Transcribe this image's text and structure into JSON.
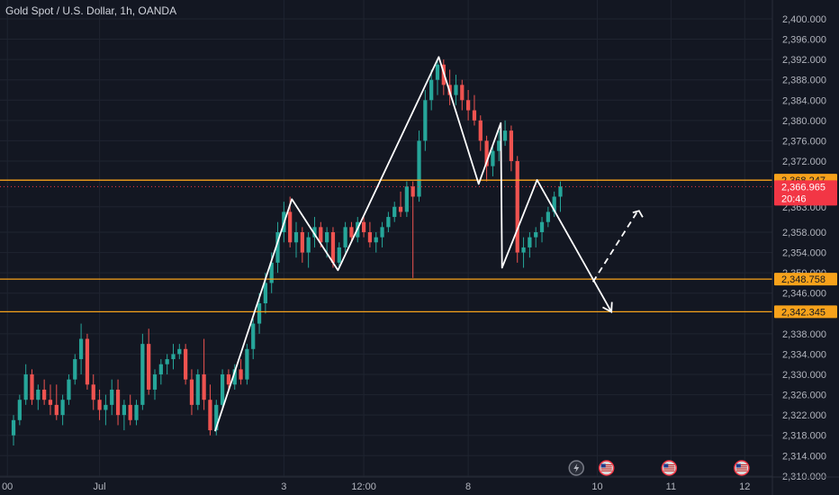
{
  "header": {
    "title": "Gold Spot / U.S. Dollar, 1h, OANDA"
  },
  "colors": {
    "background": "#131722",
    "grid": "#1f2430",
    "up": "#26a69a",
    "down": "#ef5350",
    "level": "#f7a21b",
    "pattern": "#ffffff",
    "last_price_bg": "#f23645",
    "axis_text": "#b2b5be"
  },
  "chart_data": {
    "type": "candlestick",
    "instrument": "Gold Spot / U.S. Dollar",
    "timeframe": "1h",
    "source": "OANDA",
    "y_axis": {
      "ticks": [
        "2,400.000",
        "2,396.000",
        "2,392.000",
        "2,388.000",
        "2,384.000",
        "2,380.000",
        "2,376.000",
        "2,372.000",
        "2,363.000",
        "2,358.000",
        "2,354.000",
        "2,350.000",
        "2,346.000",
        "2,338.000",
        "2,334.000",
        "2,330.000",
        "2,326.000",
        "2,322.000",
        "2,318.000",
        "2,314.000",
        "2,310.000"
      ],
      "tick_values": [
        2400,
        2396,
        2392,
        2388,
        2384,
        2380,
        2376,
        2372,
        2363,
        2358,
        2354,
        2350,
        2346,
        2338,
        2334,
        2330,
        2326,
        2322,
        2318,
        2314,
        2310
      ],
      "range": [
        2309.8,
        2402.3
      ]
    },
    "x_axis": {
      "ticks": [
        "00",
        "Jul",
        "3",
        "12:00",
        "8",
        "10",
        "11",
        "12"
      ],
      "tick_positions": [
        -1,
        14,
        44,
        57,
        74,
        95,
        107,
        119
      ]
    },
    "x_range": [
      -2.2,
      123.5
    ],
    "price_levels": [
      {
        "value": 2368.247,
        "label": "2,368.247"
      },
      {
        "value": 2348.758,
        "label": "2,348.758"
      },
      {
        "value": 2342.345,
        "label": "2,342.345"
      }
    ],
    "last_price": {
      "value": 2366.965,
      "label": "2,366.965",
      "countdown": "20:46"
    },
    "pattern_line": [
      {
        "x": 32.8,
        "y": 2318.8
      },
      {
        "x": 45.3,
        "y": 2364.5
      },
      {
        "x": 52.8,
        "y": 2350.5
      },
      {
        "x": 69.2,
        "y": 2392.5
      },
      {
        "x": 75.7,
        "y": 2367.5
      },
      {
        "x": 79.3,
        "y": 2379.5
      },
      {
        "x": 79.5,
        "y": 2351.0
      },
      {
        "x": 85.2,
        "y": 2368.3
      },
      {
        "x": 97.3,
        "y": 2342.3
      }
    ],
    "pattern_arrow_tip": {
      "x": 97.3,
      "y": 2342.3
    },
    "projection_dashed": [
      {
        "x": 94.3,
        "y": 2348.2
      },
      {
        "x": 101.5,
        "y": 2362.0
      }
    ],
    "projection_tip": {
      "x": 101.8,
      "y": 2362.2
    },
    "candles": [
      {
        "o": 2318,
        "h": 2322,
        "l": 2316,
        "c": 2321
      },
      {
        "o": 2321,
        "h": 2326,
        "l": 2320,
        "c": 2325
      },
      {
        "o": 2325,
        "h": 2332,
        "l": 2324,
        "c": 2330
      },
      {
        "o": 2330,
        "h": 2331,
        "l": 2324,
        "c": 2325
      },
      {
        "o": 2325,
        "h": 2328,
        "l": 2323,
        "c": 2327
      },
      {
        "o": 2327,
        "h": 2329,
        "l": 2324,
        "c": 2325
      },
      {
        "o": 2325,
        "h": 2328,
        "l": 2322,
        "c": 2324
      },
      {
        "o": 2324,
        "h": 2328,
        "l": 2321,
        "c": 2322
      },
      {
        "o": 2322,
        "h": 2326,
        "l": 2320,
        "c": 2325
      },
      {
        "o": 2325,
        "h": 2330,
        "l": 2324,
        "c": 2329
      },
      {
        "o": 2329,
        "h": 2334,
        "l": 2328,
        "c": 2333
      },
      {
        "o": 2333,
        "h": 2340,
        "l": 2330,
        "c": 2337
      },
      {
        "o": 2337,
        "h": 2338,
        "l": 2327,
        "c": 2328
      },
      {
        "o": 2328,
        "h": 2330,
        "l": 2323,
        "c": 2325
      },
      {
        "o": 2325,
        "h": 2327,
        "l": 2321,
        "c": 2323
      },
      {
        "o": 2323,
        "h": 2326,
        "l": 2320,
        "c": 2324
      },
      {
        "o": 2324,
        "h": 2329,
        "l": 2322,
        "c": 2327
      },
      {
        "o": 2327,
        "h": 2329,
        "l": 2320,
        "c": 2322
      },
      {
        "o": 2322,
        "h": 2325,
        "l": 2319,
        "c": 2324
      },
      {
        "o": 2324,
        "h": 2326,
        "l": 2320,
        "c": 2321
      },
      {
        "o": 2321,
        "h": 2325,
        "l": 2320,
        "c": 2324
      },
      {
        "o": 2324,
        "h": 2338,
        "l": 2323,
        "c": 2336
      },
      {
        "o": 2336,
        "h": 2339,
        "l": 2326,
        "c": 2327
      },
      {
        "o": 2327,
        "h": 2331,
        "l": 2325,
        "c": 2330
      },
      {
        "o": 2330,
        "h": 2333,
        "l": 2328,
        "c": 2332
      },
      {
        "o": 2332,
        "h": 2334,
        "l": 2330,
        "c": 2333
      },
      {
        "o": 2333,
        "h": 2336,
        "l": 2331,
        "c": 2334
      },
      {
        "o": 2334,
        "h": 2336,
        "l": 2333,
        "c": 2335
      },
      {
        "o": 2335,
        "h": 2336,
        "l": 2328,
        "c": 2329
      },
      {
        "o": 2329,
        "h": 2331,
        "l": 2322,
        "c": 2324
      },
      {
        "o": 2324,
        "h": 2331,
        "l": 2323,
        "c": 2330
      },
      {
        "o": 2330,
        "h": 2337,
        "l": 2323,
        "c": 2325
      },
      {
        "o": 2325,
        "h": 2328,
        "l": 2318,
        "c": 2319
      },
      {
        "o": 2319,
        "h": 2325,
        "l": 2318,
        "c": 2324
      },
      {
        "o": 2324,
        "h": 2331,
        "l": 2323,
        "c": 2330
      },
      {
        "o": 2330,
        "h": 2331,
        "l": 2327,
        "c": 2328
      },
      {
        "o": 2328,
        "h": 2332,
        "l": 2327,
        "c": 2331
      },
      {
        "o": 2331,
        "h": 2333,
        "l": 2328,
        "c": 2329
      },
      {
        "o": 2329,
        "h": 2336,
        "l": 2328,
        "c": 2335
      },
      {
        "o": 2335,
        "h": 2341,
        "l": 2333,
        "c": 2340
      },
      {
        "o": 2340,
        "h": 2346,
        "l": 2338,
        "c": 2344
      },
      {
        "o": 2344,
        "h": 2350,
        "l": 2342,
        "c": 2348
      },
      {
        "o": 2348,
        "h": 2354,
        "l": 2346,
        "c": 2352
      },
      {
        "o": 2352,
        "h": 2360,
        "l": 2350,
        "c": 2358
      },
      {
        "o": 2358,
        "h": 2364,
        "l": 2356,
        "c": 2362
      },
      {
        "o": 2362,
        "h": 2365,
        "l": 2355,
        "c": 2356
      },
      {
        "o": 2356,
        "h": 2360,
        "l": 2353,
        "c": 2358
      },
      {
        "o": 2358,
        "h": 2359,
        "l": 2352,
        "c": 2354
      },
      {
        "o": 2354,
        "h": 2358,
        "l": 2351,
        "c": 2357
      },
      {
        "o": 2357,
        "h": 2361,
        "l": 2355,
        "c": 2359
      },
      {
        "o": 2359,
        "h": 2360,
        "l": 2355,
        "c": 2356
      },
      {
        "o": 2356,
        "h": 2359,
        "l": 2353,
        "c": 2358
      },
      {
        "o": 2358,
        "h": 2359,
        "l": 2351,
        "c": 2352
      },
      {
        "o": 2352,
        "h": 2356,
        "l": 2351,
        "c": 2355
      },
      {
        "o": 2355,
        "h": 2360,
        "l": 2354,
        "c": 2359
      },
      {
        "o": 2359,
        "h": 2360,
        "l": 2356,
        "c": 2357
      },
      {
        "o": 2357,
        "h": 2361,
        "l": 2356,
        "c": 2360
      },
      {
        "o": 2360,
        "h": 2361,
        "l": 2357,
        "c": 2358
      },
      {
        "o": 2358,
        "h": 2360,
        "l": 2355,
        "c": 2356
      },
      {
        "o": 2356,
        "h": 2358,
        "l": 2354,
        "c": 2357
      },
      {
        "o": 2357,
        "h": 2360,
        "l": 2355,
        "c": 2359
      },
      {
        "o": 2359,
        "h": 2362,
        "l": 2358,
        "c": 2361
      },
      {
        "o": 2361,
        "h": 2364,
        "l": 2360,
        "c": 2363
      },
      {
        "o": 2363,
        "h": 2366,
        "l": 2361,
        "c": 2362
      },
      {
        "o": 2362,
        "h": 2368,
        "l": 2361,
        "c": 2367
      },
      {
        "o": 2367,
        "h": 2368,
        "l": 2349,
        "c": 2365
      },
      {
        "o": 2365,
        "h": 2378,
        "l": 2364,
        "c": 2376
      },
      {
        "o": 2376,
        "h": 2386,
        "l": 2374,
        "c": 2384
      },
      {
        "o": 2384,
        "h": 2390,
        "l": 2382,
        "c": 2388
      },
      {
        "o": 2388,
        "h": 2392,
        "l": 2385,
        "c": 2391
      },
      {
        "o": 2391,
        "h": 2392,
        "l": 2385,
        "c": 2387
      },
      {
        "o": 2387,
        "h": 2390,
        "l": 2383,
        "c": 2385
      },
      {
        "o": 2385,
        "h": 2389,
        "l": 2383,
        "c": 2387
      },
      {
        "o": 2387,
        "h": 2388,
        "l": 2382,
        "c": 2384
      },
      {
        "o": 2384,
        "h": 2386,
        "l": 2380,
        "c": 2382
      },
      {
        "o": 2382,
        "h": 2385,
        "l": 2379,
        "c": 2380
      },
      {
        "o": 2380,
        "h": 2381,
        "l": 2374,
        "c": 2376
      },
      {
        "o": 2376,
        "h": 2377,
        "l": 2368,
        "c": 2371
      },
      {
        "o": 2371,
        "h": 2375,
        "l": 2369,
        "c": 2374
      },
      {
        "o": 2374,
        "h": 2378,
        "l": 2372,
        "c": 2376
      },
      {
        "o": 2376,
        "h": 2380,
        "l": 2375,
        "c": 2378
      },
      {
        "o": 2378,
        "h": 2379,
        "l": 2370,
        "c": 2372
      },
      {
        "o": 2372,
        "h": 2373,
        "l": 2352,
        "c": 2354
      },
      {
        "o": 2354,
        "h": 2357,
        "l": 2351,
        "c": 2355
      },
      {
        "o": 2355,
        "h": 2358,
        "l": 2353,
        "c": 2357
      },
      {
        "o": 2357,
        "h": 2359,
        "l": 2355,
        "c": 2358
      },
      {
        "o": 2358,
        "h": 2361,
        "l": 2356,
        "c": 2360
      },
      {
        "o": 2360,
        "h": 2363,
        "l": 2359,
        "c": 2362
      },
      {
        "o": 2362,
        "h": 2366,
        "l": 2361,
        "c": 2365
      },
      {
        "o": 2365,
        "h": 2368,
        "l": 2362,
        "c": 2367
      }
    ],
    "event_icons": [
      {
        "icon": "lightning-icon",
        "x": 91.6
      },
      {
        "icon": "us-flag-icon",
        "x": 96.5
      },
      {
        "icon": "us-flag-icon",
        "x": 106.7
      },
      {
        "icon": "us-flag-icon",
        "x": 118.5
      }
    ]
  }
}
